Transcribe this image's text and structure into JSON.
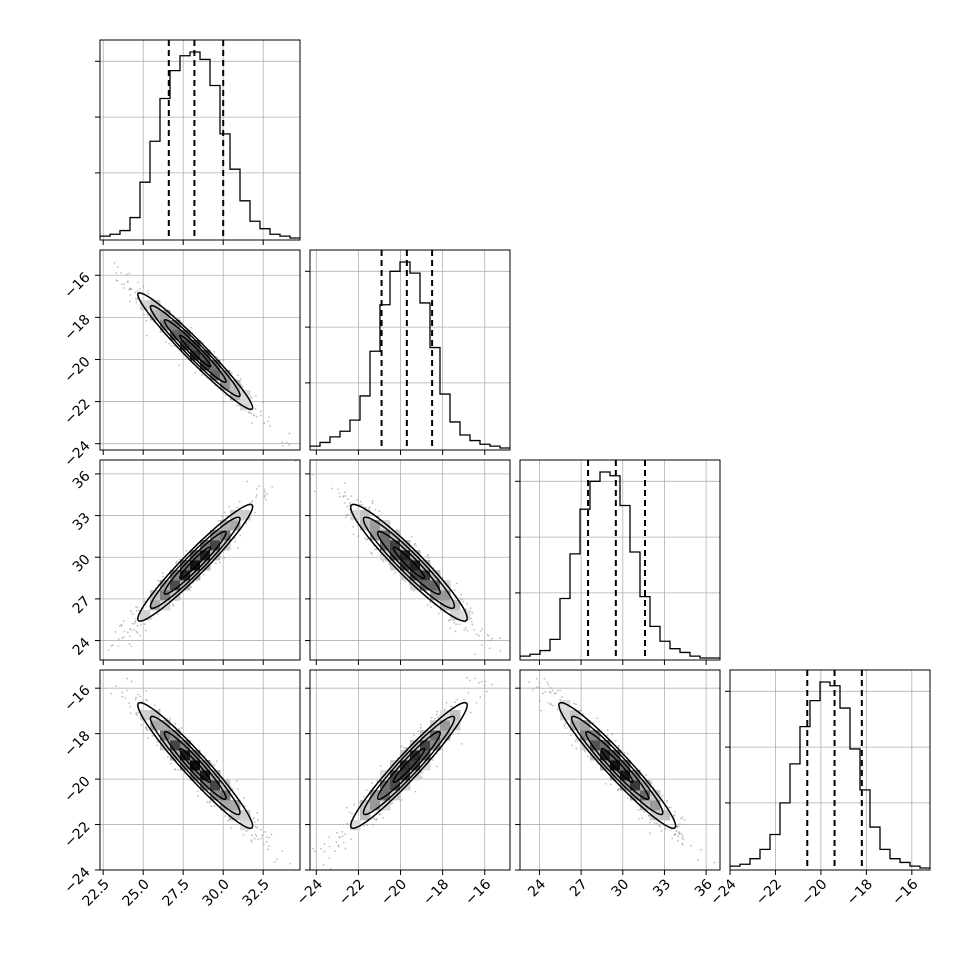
{
  "chart_data": {
    "type": "corner",
    "title": "",
    "parameters": [
      {
        "mean": 28.25,
        "std": 1.75,
        "ticks": [
          22.5,
          25.0,
          27.5,
          30.0,
          32.5
        ],
        "tick_labels": [
          "22.5",
          "25.0",
          "27.5",
          "30.0",
          "32.5"
        ],
        "lim": [
          22.3,
          34.8
        ]
      },
      {
        "mean": -19.6,
        "std": 1.35,
        "ticks": [
          -24,
          -22,
          -20,
          -18,
          -16
        ],
        "tick_labels": [
          "−24",
          "−22",
          "−20",
          "−18",
          "−16"
        ],
        "lim": [
          -24.3,
          -14.8
        ]
      },
      {
        "mean": 29.6,
        "std": 2.05,
        "ticks": [
          24,
          27,
          30,
          33,
          36
        ],
        "tick_labels": [
          "24",
          "27",
          "30",
          "33",
          "36"
        ],
        "lim": [
          22.6,
          37.0
        ]
      },
      {
        "mean": -19.4,
        "std": 1.35,
        "ticks": [
          -24,
          -22,
          -20,
          -18,
          -16
        ],
        "tick_labels": [
          "−24",
          "−22",
          "−20",
          "−18",
          "−16"
        ],
        "lim": [
          -24.0,
          -15.2
        ]
      }
    ],
    "correlations": {
      "1-0": -0.97,
      "2-0": 0.96,
      "2-1": -0.95,
      "3-0": -0.96,
      "3-1": 0.96,
      "3-2": -0.96
    },
    "quantiles": [
      0.16,
      0.5,
      0.84
    ],
    "quantile_values": [
      [
        26.6,
        28.2,
        30.0
      ],
      [
        -20.9,
        -19.7,
        -18.5
      ],
      [
        27.5,
        29.5,
        31.6
      ],
      [
        -20.6,
        -19.4,
        -18.2
      ]
    ],
    "histograms": [
      {
        "edges_start": 22.3,
        "bin_width": 0.625,
        "counts": [
          0.01,
          0.02,
          0.04,
          0.11,
          0.3,
          0.52,
          0.75,
          0.9,
          0.98,
          1.0,
          0.96,
          0.82,
          0.56,
          0.37,
          0.2,
          0.09,
          0.05,
          0.02,
          0.01,
          0.0
        ]
      },
      {
        "edges_start": -24.3,
        "bin_width": 0.475,
        "counts": [
          0.01,
          0.03,
          0.06,
          0.09,
          0.15,
          0.28,
          0.52,
          0.77,
          0.95,
          1.0,
          0.94,
          0.78,
          0.54,
          0.29,
          0.14,
          0.07,
          0.04,
          0.02,
          0.01,
          0.0
        ]
      },
      {
        "edges_start": 22.6,
        "bin_width": 0.72,
        "counts": [
          0.01,
          0.02,
          0.04,
          0.1,
          0.32,
          0.56,
          0.8,
          0.95,
          1.0,
          0.98,
          0.82,
          0.57,
          0.33,
          0.17,
          0.09,
          0.05,
          0.03,
          0.01,
          0.0,
          0.0
        ]
      },
      {
        "edges_start": -24.0,
        "bin_width": 0.44,
        "counts": [
          0.01,
          0.02,
          0.05,
          0.1,
          0.18,
          0.35,
          0.56,
          0.76,
          0.9,
          1.0,
          0.98,
          0.86,
          0.64,
          0.42,
          0.22,
          0.1,
          0.05,
          0.03,
          0.01,
          0.0
        ]
      }
    ],
    "diagonal_ticks_y_labels": "none",
    "grid": true,
    "legend": "none",
    "xlabel": "",
    "ylabel": ""
  }
}
